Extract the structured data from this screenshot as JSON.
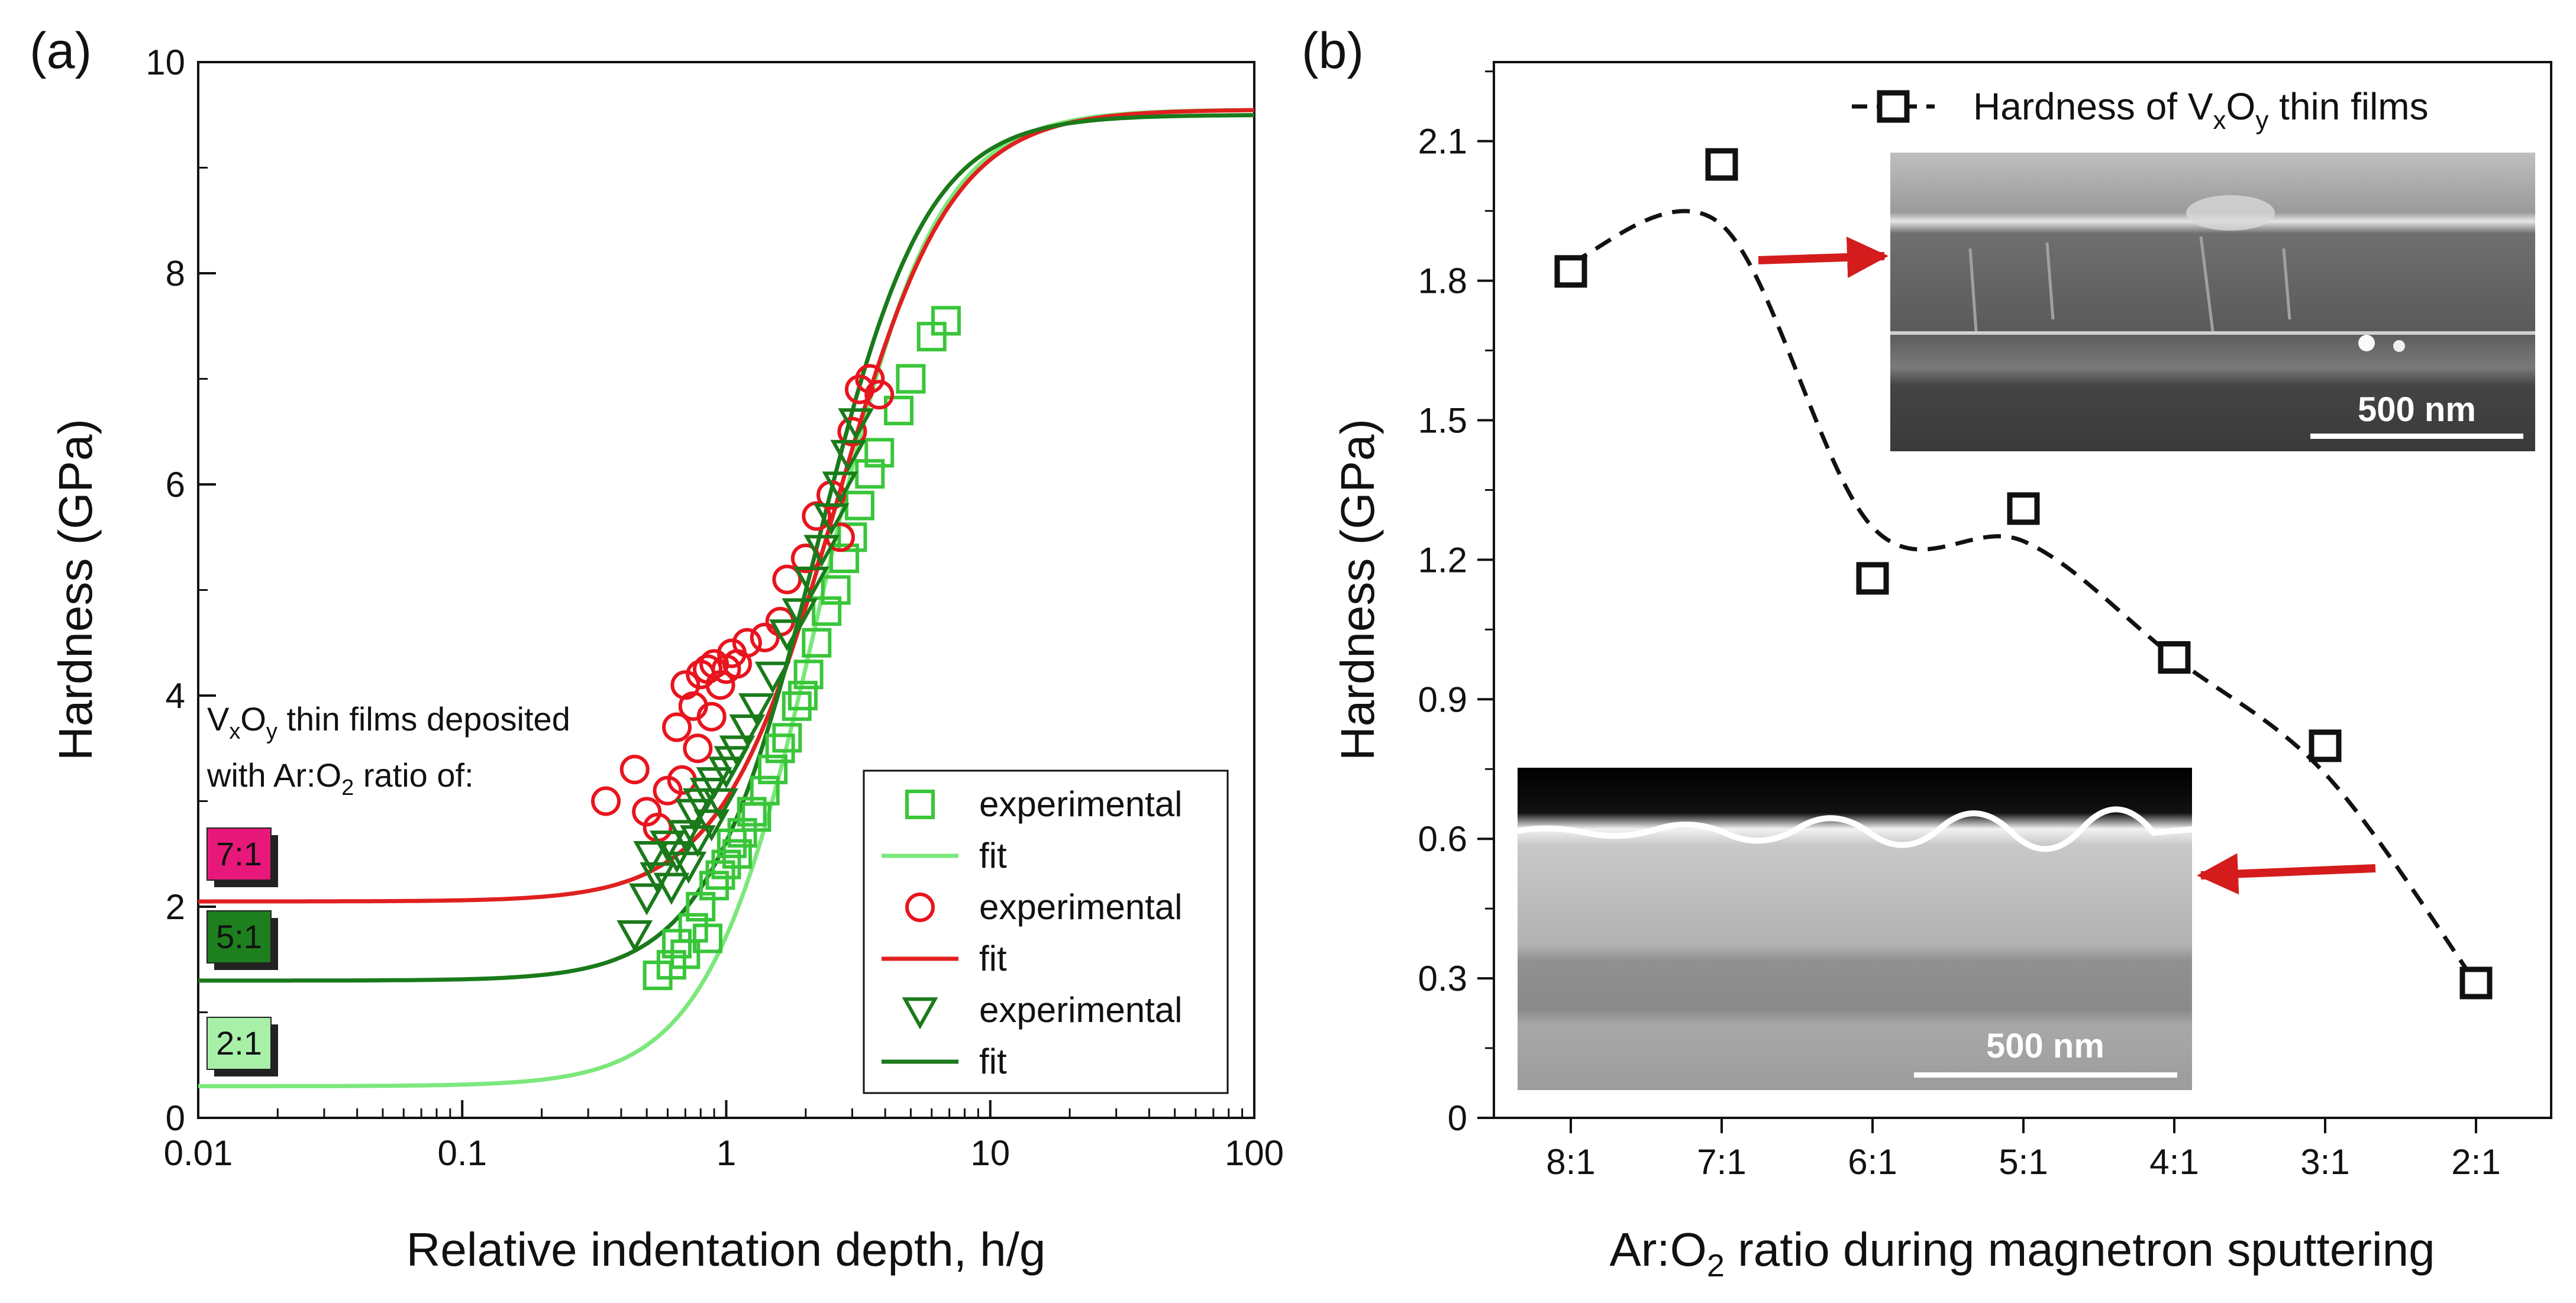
{
  "chart_data": [
    {
      "type": "scatter",
      "panel_label": "(a)",
      "xscale": "log",
      "xlim": [
        0.01,
        100
      ],
      "ylim": [
        0,
        10
      ],
      "xlabel": "Relative indentation depth, h/g",
      "ylabel": "Hardness (GPa)",
      "xticks": [
        0.01,
        0.1,
        1,
        10,
        100
      ],
      "xtick_labels": [
        "0.01",
        "0.1",
        "1",
        "10",
        "100"
      ],
      "yticks": [
        0,
        2,
        4,
        6,
        8,
        10
      ],
      "ytick_labels": [
        "0",
        "2",
        "4",
        "6",
        "8",
        "10"
      ],
      "annotation": {
        "line1_base": "V",
        "line1_sub1": "x",
        "line1_mid": "O",
        "line1_sub2": "y",
        "line1_rest": " thin films deposited",
        "line2_base": "with Ar:O",
        "line2_sub": "2",
        "line2_rest": " ratio of:"
      },
      "series": [
        {
          "name": "2:1",
          "label": "2:1",
          "marker": "square",
          "marker_color": "#39c639",
          "fit_color": "#7be87b",
          "tag_color": "#a8f0a8",
          "legend_marker_label": "experimental",
          "legend_fit_label": "fit",
          "fit": {
            "h0": 0.3,
            "hinf": 9.55,
            "x50": 2.3,
            "n": 2.05
          },
          "points": [
            [
              0.55,
              1.35
            ],
            [
              0.62,
              1.45
            ],
            [
              0.65,
              1.65
            ],
            [
              0.7,
              1.55
            ],
            [
              0.75,
              1.8
            ],
            [
              0.8,
              2.0
            ],
            [
              0.85,
              1.7
            ],
            [
              0.9,
              2.2
            ],
            [
              0.95,
              2.3
            ],
            [
              1.0,
              2.4
            ],
            [
              1.05,
              2.6
            ],
            [
              1.1,
              2.5
            ],
            [
              1.15,
              2.7
            ],
            [
              1.25,
              2.9
            ],
            [
              1.3,
              2.85
            ],
            [
              1.4,
              3.1
            ],
            [
              1.5,
              3.3
            ],
            [
              1.6,
              3.5
            ],
            [
              1.7,
              3.6
            ],
            [
              1.85,
              3.9
            ],
            [
              1.95,
              4.0
            ],
            [
              2.05,
              4.2
            ],
            [
              2.2,
              4.5
            ],
            [
              2.4,
              4.8
            ],
            [
              2.6,
              5.0
            ],
            [
              2.8,
              5.3
            ],
            [
              3.0,
              5.5
            ],
            [
              3.2,
              5.8
            ],
            [
              3.5,
              6.1
            ],
            [
              3.8,
              6.3
            ],
            [
              4.5,
              6.7
            ],
            [
              5.0,
              7.0
            ],
            [
              6.0,
              7.4
            ],
            [
              6.8,
              7.55
            ]
          ]
        },
        {
          "name": "7:1",
          "label": "7:1",
          "marker": "circle",
          "marker_color": "#e8141e",
          "fit_color": "#e02020",
          "tag_color": "#e8187a",
          "legend_marker_label": "experimental",
          "legend_fit_label": "fit",
          "fit": {
            "h0": 2.05,
            "hinf": 9.55,
            "x50": 2.6,
            "n": 2.0
          },
          "points": [
            [
              0.35,
              3.0
            ],
            [
              0.45,
              3.3
            ],
            [
              0.5,
              2.9
            ],
            [
              0.55,
              2.75
            ],
            [
              0.6,
              3.1
            ],
            [
              0.65,
              3.7
            ],
            [
              0.68,
              3.2
            ],
            [
              0.7,
              4.1
            ],
            [
              0.75,
              3.9
            ],
            [
              0.78,
              3.5
            ],
            [
              0.8,
              4.2
            ],
            [
              0.85,
              4.25
            ],
            [
              0.88,
              3.8
            ],
            [
              0.9,
              4.3
            ],
            [
              0.95,
              4.1
            ],
            [
              1.0,
              4.25
            ],
            [
              1.05,
              4.4
            ],
            [
              1.1,
              4.3
            ],
            [
              1.2,
              4.5
            ],
            [
              1.4,
              4.55
            ],
            [
              1.6,
              4.7
            ],
            [
              1.7,
              5.1
            ],
            [
              2.0,
              5.3
            ],
            [
              2.2,
              5.7
            ],
            [
              2.5,
              5.9
            ],
            [
              2.7,
              5.5
            ],
            [
              3.0,
              6.5
            ],
            [
              3.2,
              6.9
            ],
            [
              3.5,
              7.0
            ],
            [
              3.8,
              6.85
            ]
          ]
        },
        {
          "name": "5:1",
          "label": "5:1",
          "marker": "triangle-down",
          "marker_color": "#1a7a1a",
          "fit_color": "#1a7a1a",
          "tag_color": "#1e7f1e",
          "legend_marker_label": "experimental",
          "legend_fit_label": "fit",
          "fit": {
            "h0": 1.3,
            "hinf": 9.5,
            "x50": 2.2,
            "n": 2.1
          },
          "points": [
            [
              0.45,
              1.75
            ],
            [
              0.5,
              2.1
            ],
            [
              0.52,
              2.5
            ],
            [
              0.55,
              2.3
            ],
            [
              0.6,
              2.6
            ],
            [
              0.62,
              2.2
            ],
            [
              0.65,
              2.5
            ],
            [
              0.7,
              2.7
            ],
            [
              0.72,
              2.4
            ],
            [
              0.75,
              2.9
            ],
            [
              0.78,
              2.65
            ],
            [
              0.8,
              3.0
            ],
            [
              0.85,
              3.1
            ],
            [
              0.88,
              2.8
            ],
            [
              0.9,
              3.2
            ],
            [
              0.95,
              3.0
            ],
            [
              1.0,
              3.3
            ],
            [
              1.05,
              3.4
            ],
            [
              1.1,
              3.5
            ],
            [
              1.2,
              3.7
            ],
            [
              1.3,
              3.9
            ],
            [
              1.5,
              4.2
            ],
            [
              1.7,
              4.6
            ],
            [
              1.9,
              4.8
            ],
            [
              2.1,
              5.1
            ],
            [
              2.3,
              5.4
            ],
            [
              2.5,
              5.7
            ],
            [
              2.7,
              6.0
            ],
            [
              2.9,
              6.3
            ],
            [
              3.1,
              6.6
            ]
          ]
        }
      ]
    },
    {
      "type": "scatter",
      "panel_label": "(b)",
      "title": "",
      "xlabel_base": "Ar:O",
      "xlabel_sub": "2",
      "xlabel_rest": " ratio during magnetron sputtering",
      "ylabel": "Hardness (GPa)",
      "categories": [
        "8:1",
        "7:1",
        "6:1",
        "5:1",
        "4:1",
        "3:1",
        "2:1"
      ],
      "values": [
        1.82,
        2.05,
        1.16,
        1.31,
        0.99,
        0.8,
        0.29
      ],
      "smooth_curve": [
        1.84,
        1.92,
        1.27,
        1.24,
        0.99,
        0.74,
        0.29
      ],
      "ylim": [
        0,
        2.27
      ],
      "yticks": [
        0,
        0.3,
        0.6,
        0.9,
        1.2,
        1.5,
        1.8,
        2.1
      ],
      "ytick_labels": [
        "0",
        "0.3",
        "0.6",
        "0.9",
        "1.2",
        "1.5",
        "1.8",
        "2.1"
      ],
      "legend": {
        "base": "Hardness of V",
        "sub1": "x",
        "mid": "O",
        "sub2": "y",
        "rest": " thin films"
      },
      "insets": [
        {
          "name": "sem-top",
          "scale_bar_label": "500 nm"
        },
        {
          "name": "sem-bottom",
          "scale_bar_label": "500 nm"
        }
      ],
      "arrow_color": "#d41c1c"
    }
  ]
}
